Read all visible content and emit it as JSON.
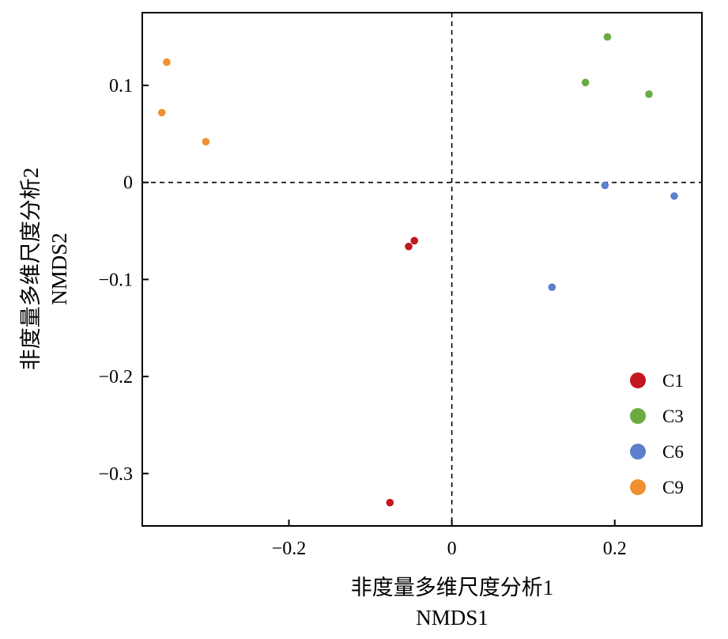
{
  "chart_data": {
    "type": "scatter",
    "xlabel": "非度量多维尺度分析1",
    "xlabel_sub": "NMDS1",
    "ylabel": "非度量多维尺度分析2",
    "ylabel_sub": "NMDS2",
    "xlim": [
      -0.38,
      0.307
    ],
    "ylim": [
      -0.354,
      0.175
    ],
    "x_ticks": [
      {
        "value": -0.2,
        "label": "−0.2"
      },
      {
        "value": 0,
        "label": "0"
      },
      {
        "value": 0.2,
        "label": "0.2"
      }
    ],
    "y_ticks": [
      {
        "value": 0.1,
        "label": "0.1"
      },
      {
        "value": 0,
        "label": "0"
      },
      {
        "value": -0.1,
        "label": "−0.1"
      },
      {
        "value": -0.2,
        "label": "−0.2"
      },
      {
        "value": -0.3,
        "label": "−0.3"
      }
    ],
    "reference_lines": {
      "x": 0,
      "y": 0,
      "style": "dashed"
    },
    "grid": false,
    "legend_position": "bottom-right",
    "series": [
      {
        "name": "C1",
        "color": "#c3161f",
        "points": [
          [
            -0.046,
            -0.06
          ],
          [
            -0.053,
            -0.066
          ],
          [
            -0.076,
            -0.33
          ]
        ]
      },
      {
        "name": "C3",
        "color": "#6bac41",
        "points": [
          [
            0.191,
            0.15
          ],
          [
            0.164,
            0.103
          ],
          [
            0.242,
            0.091
          ]
        ]
      },
      {
        "name": "C6",
        "color": "#5b7fcc",
        "points": [
          [
            0.188,
            -0.003
          ],
          [
            0.273,
            -0.014
          ],
          [
            0.123,
            -0.108
          ]
        ]
      },
      {
        "name": "C9",
        "color": "#ef9130",
        "points": [
          [
            -0.35,
            0.124
          ],
          [
            -0.356,
            0.072
          ],
          [
            -0.302,
            0.042
          ]
        ]
      }
    ]
  }
}
